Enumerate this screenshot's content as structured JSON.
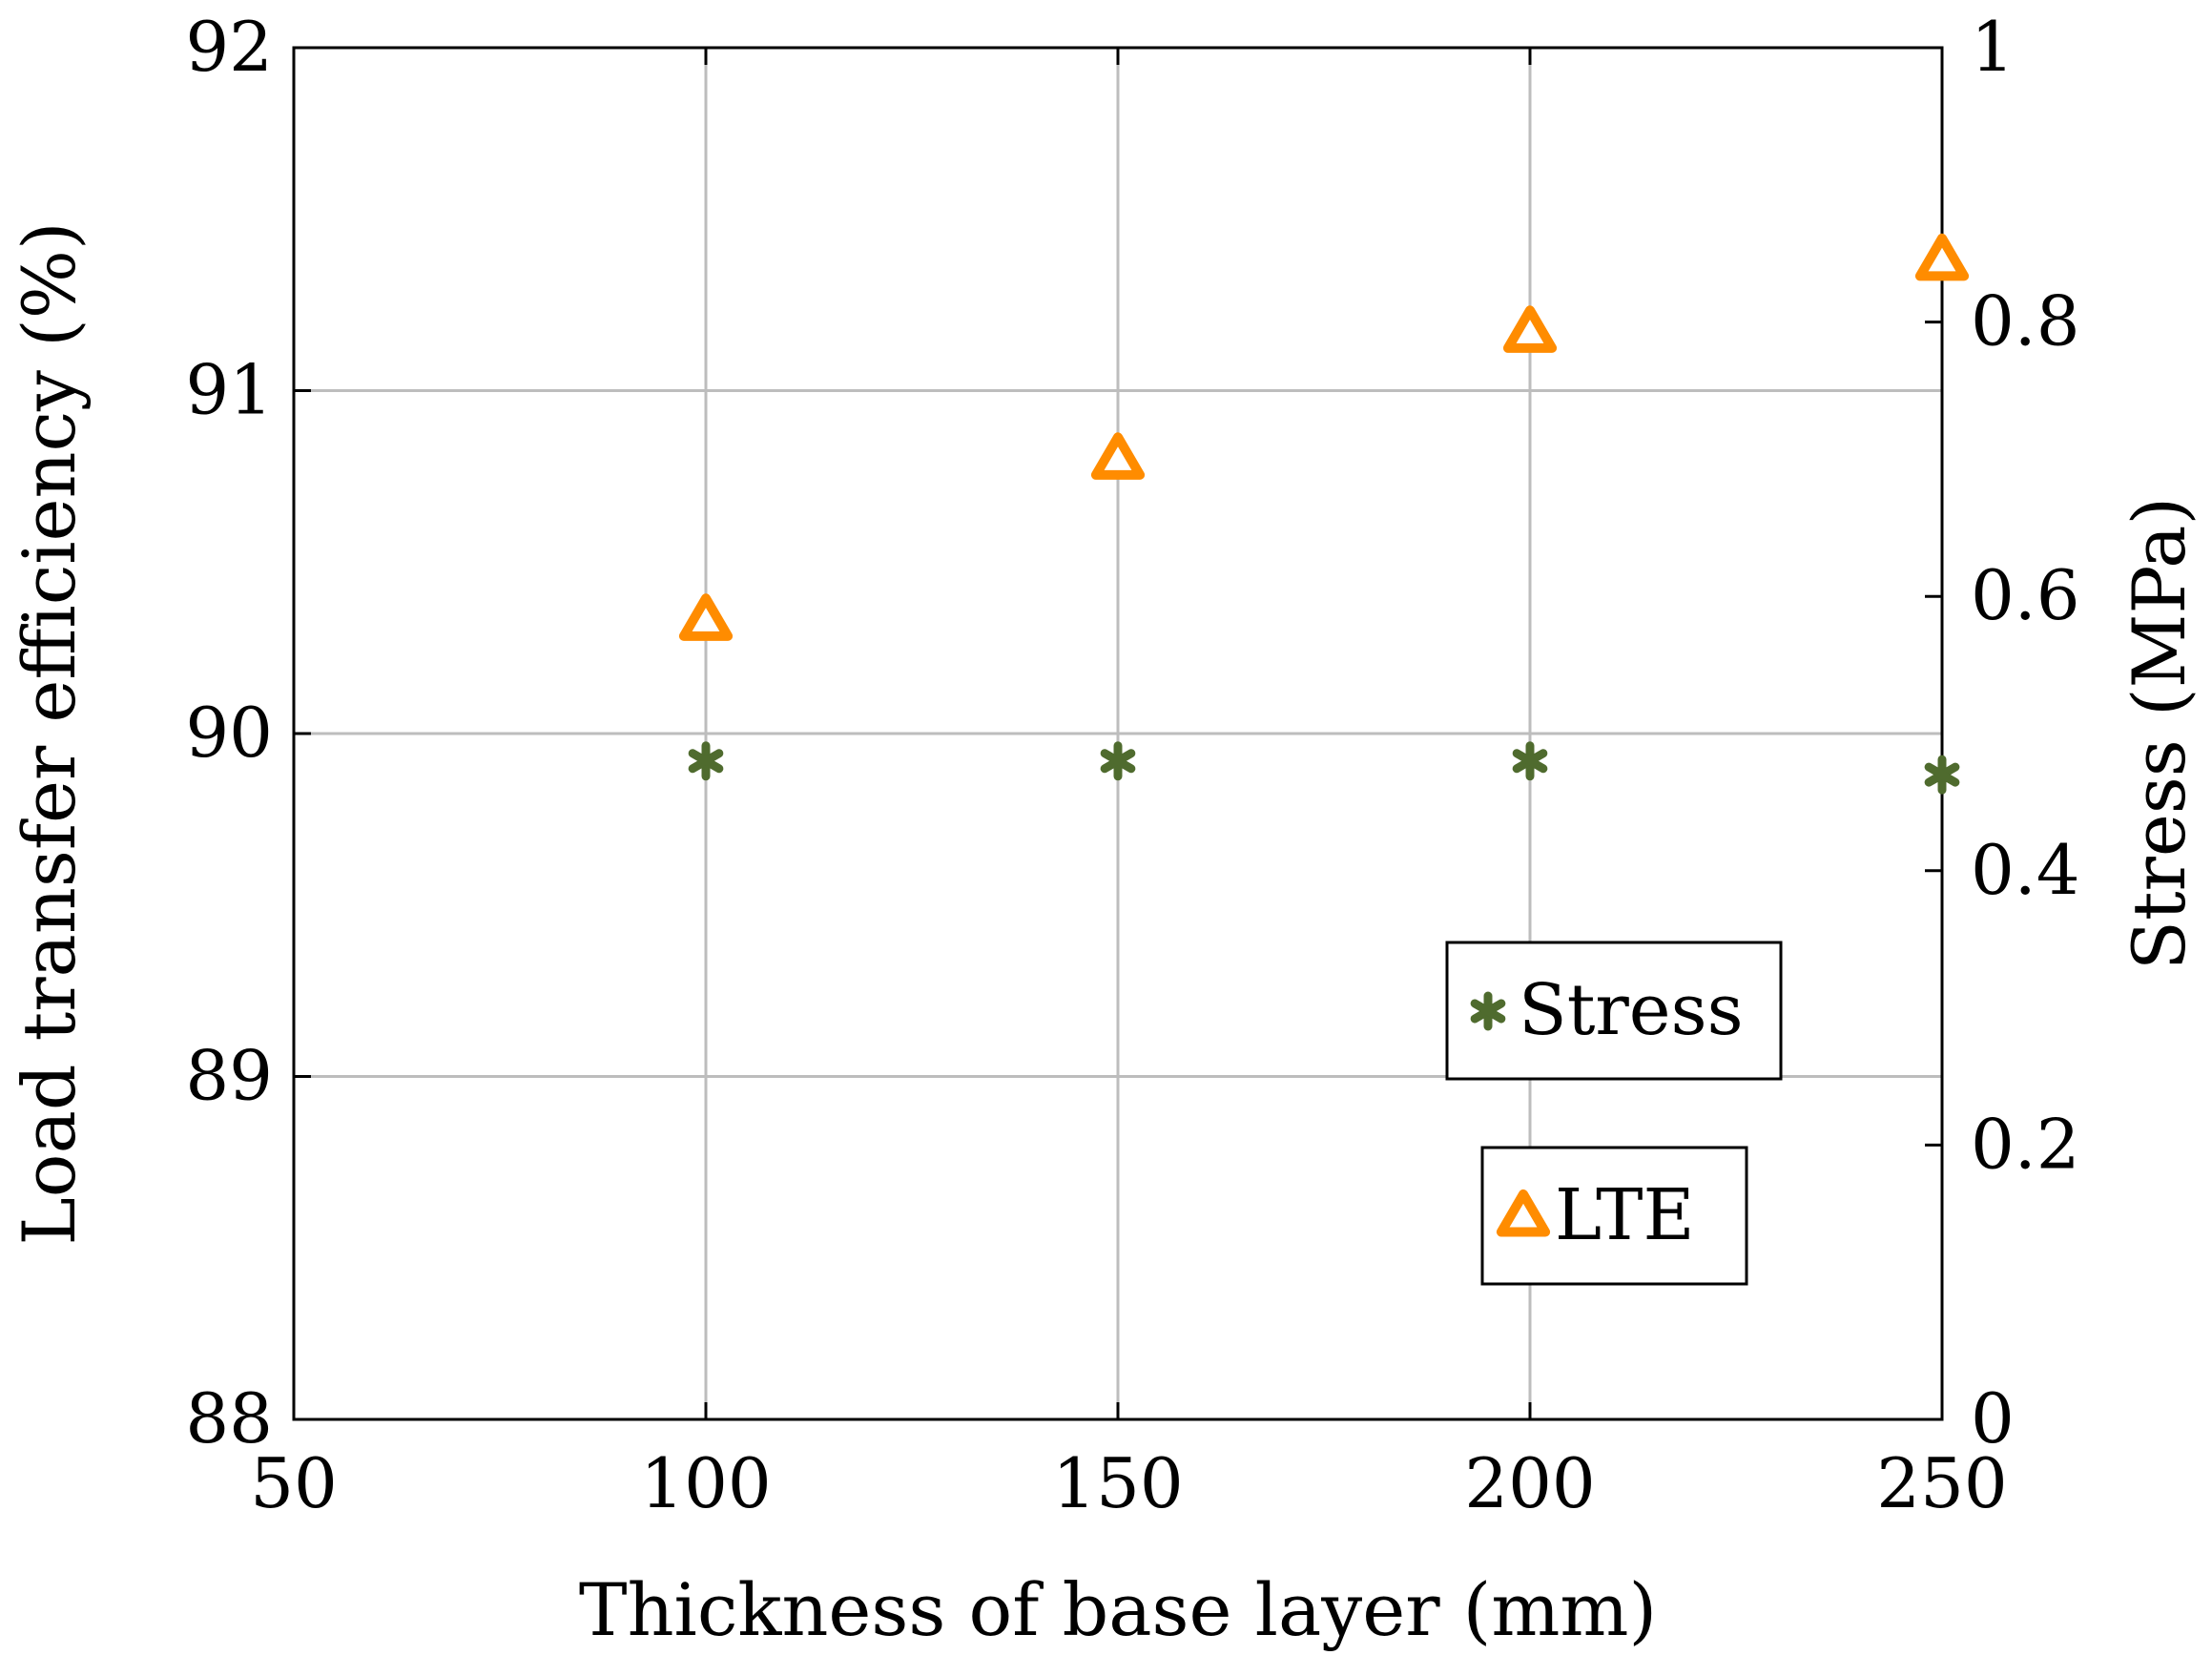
{
  "chart_data": {
    "type": "scatter",
    "title": "",
    "xlabel": "Thickness of base layer (mm)",
    "ylabel_left": "Load transfer efficiency (%)",
    "ylabel_right": "Stress (MPa)",
    "xlim": [
      50,
      250
    ],
    "ylim_left": [
      88,
      92
    ],
    "ylim_right": [
      0,
      1
    ],
    "x_ticks": [
      "50",
      "100",
      "150",
      "200",
      "250"
    ],
    "y_left_ticks": [
      "88",
      "89",
      "90",
      "91",
      "92"
    ],
    "y_right_ticks": [
      "0",
      "0.2",
      "0.4",
      "0.6",
      "0.8",
      "1"
    ],
    "grid": true,
    "series": [
      {
        "name": "Stress",
        "axis": "right",
        "marker": "asterisk",
        "color": "#4f6b2e",
        "x": [
          100,
          150,
          200,
          250
        ],
        "y": [
          0.48,
          0.48,
          0.48,
          0.47
        ]
      },
      {
        "name": "LTE",
        "axis": "left",
        "marker": "triangle",
        "color": "#ff8c00",
        "x": [
          100,
          150,
          200,
          250
        ],
        "y": [
          90.33,
          90.8,
          91.17,
          91.38
        ]
      }
    ],
    "legend": {
      "placement": "lower-right",
      "entries": [
        "Stress",
        "LTE"
      ]
    }
  }
}
